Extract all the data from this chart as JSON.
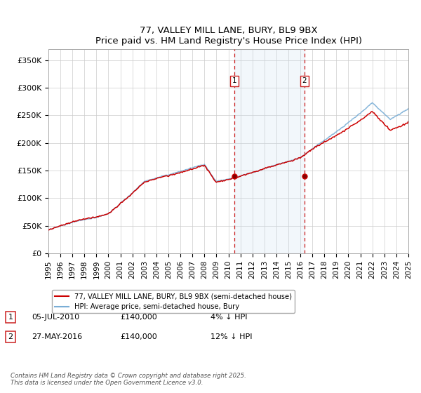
{
  "title": "77, VALLEY MILL LANE, BURY, BL9 9BX",
  "subtitle": "Price paid vs. HM Land Registry's House Price Index (HPI)",
  "ylim": [
    0,
    370000
  ],
  "yticks": [
    0,
    50000,
    100000,
    150000,
    200000,
    250000,
    300000,
    350000
  ],
  "ytick_labels": [
    "£0",
    "£50K",
    "£100K",
    "£150K",
    "£200K",
    "£250K",
    "£300K",
    "£350K"
  ],
  "hpi_color": "#7aaed6",
  "price_color": "#cc0000",
  "sale1_info": "05-JUL-2010",
  "sale1_amount": "£140,000",
  "sale1_note": "4% ↓ HPI",
  "sale2_info": "27-MAY-2016",
  "sale2_amount": "£140,000",
  "sale2_note": "12% ↓ HPI",
  "legend_line1": "77, VALLEY MILL LANE, BURY, BL9 9BX (semi-detached house)",
  "legend_line2": "HPI: Average price, semi-detached house, Bury",
  "footer": "Contains HM Land Registry data © Crown copyright and database right 2025.\nThis data is licensed under the Open Government Licence v3.0.",
  "background_color": "#ffffff",
  "shaded_region_color": "#ddeeff",
  "grid_color": "#cccccc",
  "x_start_year": 1995,
  "x_end_year": 2025
}
